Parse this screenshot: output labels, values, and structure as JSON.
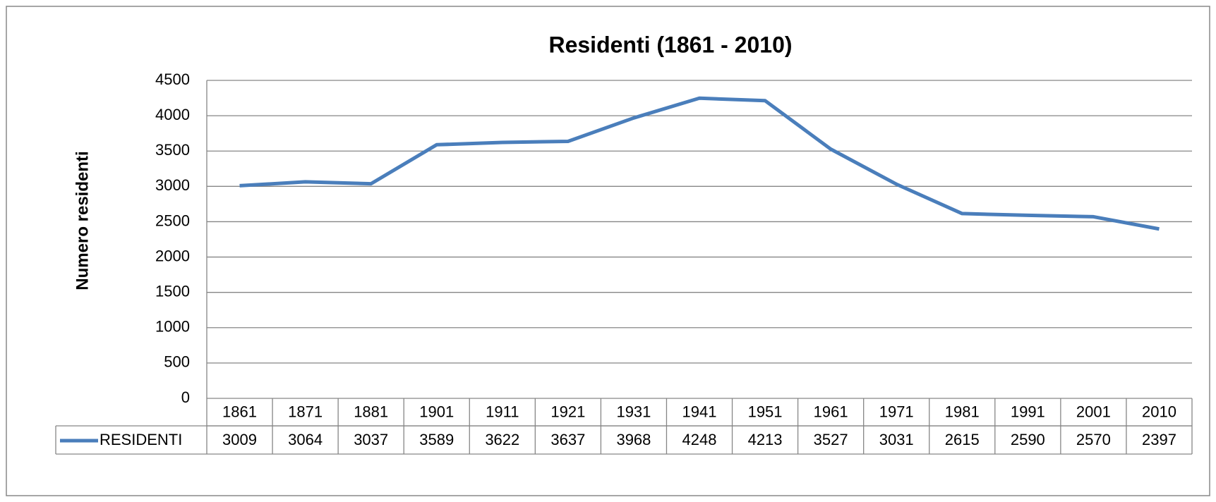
{
  "chart_data": {
    "type": "line",
    "title": "Residenti  (1861 - 2010)",
    "y_label": "Numero residenti",
    "categories": [
      "1861",
      "1871",
      "1881",
      "1901",
      "1911",
      "1921",
      "1931",
      "1941",
      "1951",
      "1961",
      "1971",
      "1981",
      "1991",
      "2001",
      "2010"
    ],
    "series": [
      {
        "name": "RESIDENTI",
        "color": "#4a7ebb",
        "values": [
          3009,
          3064,
          3037,
          3589,
          3622,
          3637,
          3968,
          4248,
          4213,
          3527,
          3031,
          2615,
          2590,
          2570,
          2397
        ]
      }
    ],
    "ylim": [
      0,
      4500
    ],
    "yticks": [
      0,
      500,
      1000,
      1500,
      2000,
      2500,
      3000,
      3500,
      4000,
      4500
    ],
    "grid": true,
    "data_table": true
  }
}
